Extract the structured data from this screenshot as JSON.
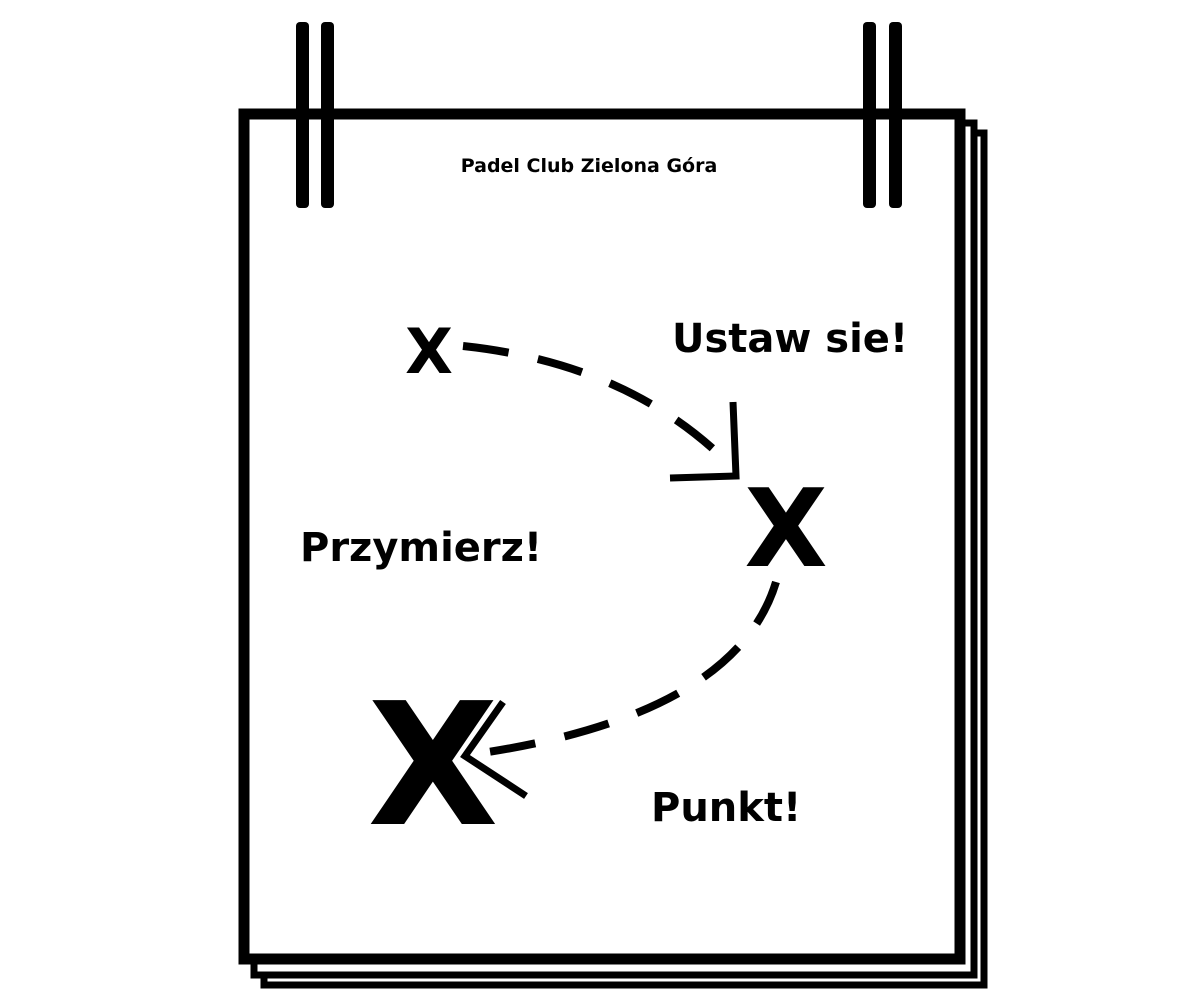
{
  "board": {
    "title": "Padel Club Zielona Góra"
  },
  "steps": [
    {
      "label": "Ustaw sie!"
    },
    {
      "label": "Przymierz!"
    },
    {
      "label": "Punkt!"
    }
  ],
  "marks": [
    {
      "symbol": "X"
    },
    {
      "symbol": "X"
    },
    {
      "symbol": "X"
    }
  ],
  "colors": {
    "ink": "#000000",
    "paper": "#ffffff"
  }
}
